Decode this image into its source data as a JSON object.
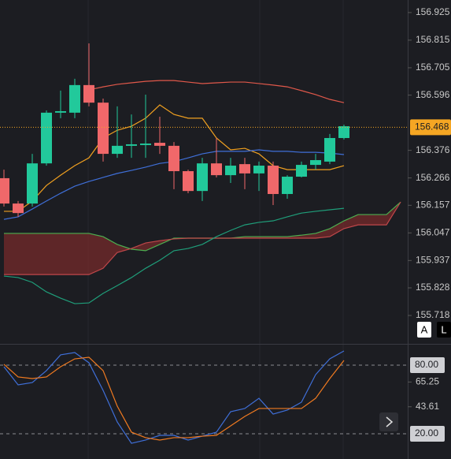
{
  "chart_data": [
    {
      "type": "candlestick",
      "ylim": [
        155.608,
        156.975
      ],
      "yticks": [
        156.925,
        156.815,
        156.705,
        156.596,
        156.376,
        156.266,
        156.157,
        156.047,
        155.937,
        155.828,
        155.718
      ],
      "up_color": "#22c99b",
      "down_color": "#f0686a",
      "open": [
        156.265,
        156.164,
        156.164,
        156.324,
        156.526,
        156.526,
        156.636,
        156.566,
        156.362,
        156.394,
        156.397,
        156.406,
        156.394,
        156.293,
        156.214,
        156.324,
        156.277,
        156.321,
        156.284,
        156.315,
        156.202,
        156.271,
        156.318,
        156.331,
        156.425
      ],
      "high": [
        156.299,
        156.174,
        156.362,
        156.535,
        156.614,
        156.661,
        156.802,
        156.582,
        156.551,
        156.519,
        156.598,
        156.51,
        156.409,
        156.299,
        156.346,
        156.425,
        156.346,
        156.346,
        156.331,
        156.331,
        156.277,
        156.331,
        156.362,
        156.441,
        156.478
      ],
      "low": [
        156.152,
        156.111,
        156.152,
        156.315,
        156.504,
        156.504,
        156.551,
        156.331,
        156.346,
        156.346,
        156.346,
        156.362,
        156.221,
        156.205,
        156.174,
        156.268,
        156.246,
        156.221,
        156.214,
        156.158,
        156.183,
        156.268,
        156.299,
        156.321,
        156.419
      ],
      "close": [
        156.164,
        156.126,
        156.324,
        156.526,
        156.532,
        156.636,
        156.566,
        156.362,
        156.394,
        156.4,
        156.403,
        156.394,
        156.293,
        156.214,
        156.324,
        156.277,
        156.315,
        156.284,
        156.315,
        156.202,
        156.271,
        156.318,
        156.337,
        156.425,
        156.472
      ],
      "series": [
        {
          "color": "#e0584a",
          "values": [
            null,
            null,
            null,
            null,
            null,
            null,
            156.617,
            156.629,
            156.639,
            156.645,
            156.651,
            156.654,
            156.654,
            156.648,
            156.642,
            156.645,
            156.648,
            156.648,
            156.642,
            156.636,
            156.629,
            156.614,
            156.598,
            156.579,
            156.566
          ]
        },
        {
          "color": "#f0a020",
          "values": [
            156.133,
            156.133,
            156.174,
            156.236,
            156.277,
            156.315,
            156.346,
            156.425,
            156.456,
            156.472,
            156.504,
            156.557,
            156.519,
            156.504,
            156.504,
            156.425,
            156.378,
            156.384,
            156.362,
            156.315,
            156.299,
            156.299,
            156.299,
            156.299,
            156.315
          ]
        },
        {
          "color": "#3f6fd8",
          "values": [
            156.101,
            156.111,
            156.142,
            156.174,
            156.205,
            156.233,
            156.252,
            156.268,
            156.284,
            156.296,
            156.309,
            156.324,
            156.331,
            156.346,
            156.362,
            156.372,
            156.372,
            156.372,
            156.378,
            156.372,
            156.372,
            156.368,
            156.368,
            156.365,
            156.359
          ]
        },
        {
          "color": "#1f9e7a",
          "values": [
            155.875,
            155.869,
            155.85,
            155.812,
            155.787,
            155.765,
            155.768,
            155.806,
            155.837,
            155.869,
            155.906,
            155.938,
            155.976,
            155.985,
            156.001,
            156.032,
            156.057,
            156.079,
            156.089,
            156.095,
            156.111,
            156.126,
            156.133,
            156.139,
            156.145
          ]
        }
      ],
      "cloud": [
        {
          "color": "#4caf50",
          "values": [
            156.045,
            156.045,
            156.045,
            156.045,
            156.045,
            156.045,
            156.045,
            156.032,
            156.001,
            155.982,
            155.976,
            156.001,
            156.026,
            156.026,
            156.026,
            156.026,
            156.026,
            156.032,
            156.032,
            156.032,
            156.032,
            156.038,
            156.045,
            156.064,
            156.095,
            156.12,
            156.12,
            156.12,
            156.17
          ]
        },
        {
          "color": "#c0474a",
          "values": [
            155.881,
            155.881,
            155.881,
            155.881,
            155.881,
            155.881,
            155.881,
            155.906,
            155.969,
            155.985,
            156.007,
            156.016,
            156.023,
            156.026,
            156.026,
            156.026,
            156.026,
            156.026,
            156.026,
            156.026,
            156.026,
            156.026,
            156.026,
            156.032,
            156.064,
            156.079,
            156.079,
            156.079,
            156.17
          ]
        }
      ],
      "cloud_fill": "rgba(150,45,45,0.55)",
      "last_price": 156.468,
      "last_price_color": "#f5a623",
      "buttons": [
        "A",
        "L"
      ]
    },
    {
      "type": "line",
      "ylim": [
        -2.07,
        97.93
      ],
      "yticks": [
        65.25,
        43.61
      ],
      "levels": [
        {
          "value": 80,
          "label": "80.00"
        },
        {
          "value": 20,
          "label": "20.00"
        }
      ],
      "series": [
        {
          "color": "#3f6fd8",
          "values": [
            78.6,
            62.8,
            64.8,
            75.2,
            89.0,
            91.0,
            82.1,
            57.9,
            30.3,
            11.7,
            14.5,
            18.6,
            18.6,
            14.5,
            17.9,
            21.4,
            39.3,
            42.1,
            51.0,
            37.2,
            40.7,
            47.6,
            71.7,
            85.5,
            92.4
          ]
        },
        {
          "color": "#f07a20",
          "values": [
            80.7,
            69.7,
            68.3,
            69.7,
            78.6,
            85.5,
            86.9,
            75.2,
            44.1,
            21.4,
            16.6,
            14.5,
            16.6,
            16.6,
            17.9,
            18.6,
            26.9,
            35.2,
            42.1,
            42.1,
            42.1,
            42.1,
            51.0,
            68.3,
            84.1
          ]
        }
      ]
    }
  ]
}
